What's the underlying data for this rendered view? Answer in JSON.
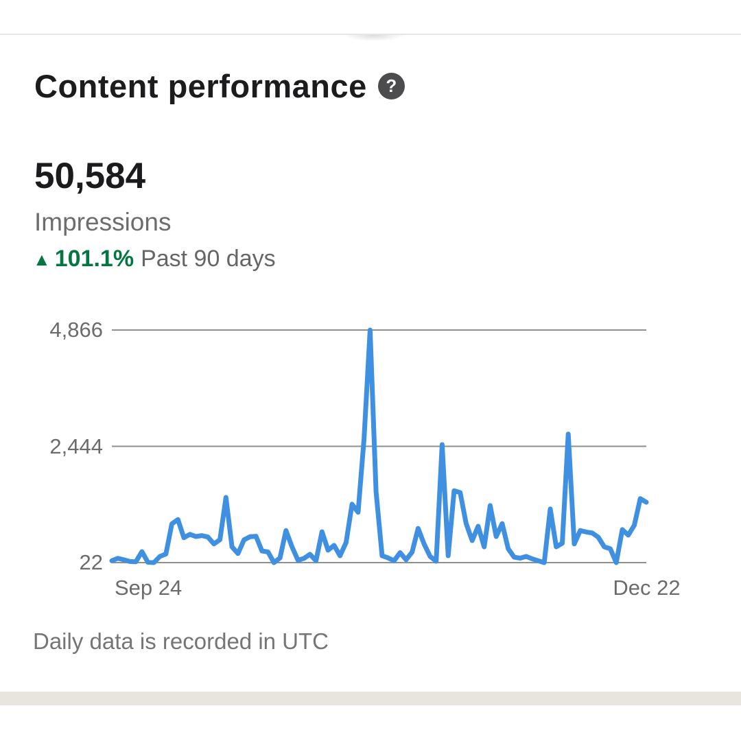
{
  "header": {
    "title": "Content performance",
    "help_icon_glyph": "?"
  },
  "metric": {
    "value": "50,584",
    "label": "Impressions",
    "trend": {
      "arrow_glyph": "▲",
      "percent": "101.1%",
      "period": "Past 90 days",
      "color": "#057642"
    }
  },
  "chart_data": {
    "type": "line",
    "series_name": "Impressions",
    "x_start_label": "Sep 24",
    "x_end_label": "Dec 22",
    "ylim": [
      22,
      4866
    ],
    "y_ticks": [
      {
        "label": "4,866",
        "value": 4866
      },
      {
        "label": "2,444",
        "value": 2444
      },
      {
        "label": "22",
        "value": 22
      }
    ],
    "grid": true,
    "line_color": "#4090e2",
    "grid_color": "#8f8f8f",
    "values": [
      60,
      110,
      80,
      45,
      40,
      250,
      30,
      22,
      150,
      200,
      830,
      920,
      540,
      610,
      565,
      585,
      555,
      410,
      500,
      1380,
      350,
      210,
      495,
      560,
      570,
      265,
      245,
      22,
      120,
      690,
      350,
      70,
      110,
      195,
      60,
      665,
      280,
      380,
      165,
      440,
      1240,
      1070,
      2600,
      4866,
      1500,
      165,
      120,
      60,
      230,
      80,
      240,
      735,
      410,
      150,
      50,
      2480,
      165,
      1520,
      1480,
      835,
      480,
      780,
      350,
      1210,
      565,
      835,
      310,
      135,
      115,
      150,
      100,
      60,
      22,
      1140,
      350,
      425,
      2700,
      410,
      690,
      660,
      640,
      550,
      350,
      310,
      22,
      710,
      595,
      800,
      1355,
      1280
    ]
  },
  "footer": {
    "note": "Daily data is recorded in UTC"
  }
}
